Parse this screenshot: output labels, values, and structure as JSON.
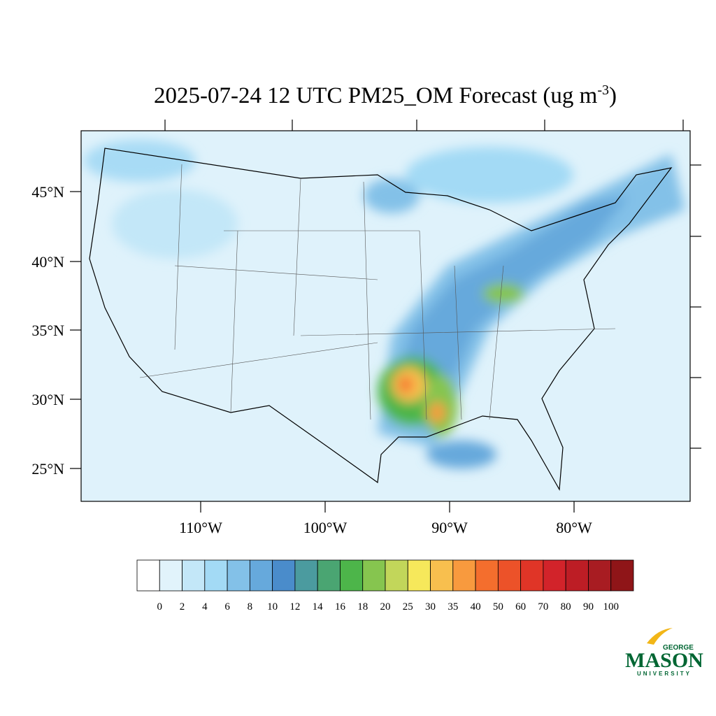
{
  "title": {
    "main": "2025-07-24 12 UTC PM25_OM Forecast (ug m",
    "sup": "-3",
    "end": ")"
  },
  "lat_labels": [
    "45°N",
    "40°N",
    "35°N",
    "30°N",
    "25°N"
  ],
  "lon_labels": [
    "110°W",
    "100°W",
    "90°W",
    "80°W"
  ],
  "colorbar": {
    "labels": [
      "0",
      "2",
      "4",
      "6",
      "8",
      "10",
      "12",
      "14",
      "16",
      "18",
      "20",
      "25",
      "30",
      "35",
      "40",
      "50",
      "60",
      "70",
      "80",
      "90",
      "100"
    ],
    "colors": [
      "#ffffff",
      "#e1f3fb",
      "#c3e7f8",
      "#a3daf5",
      "#83c1e8",
      "#66a9dc",
      "#4a8ccb",
      "#4b9b9f",
      "#4aa572",
      "#4db54a",
      "#86c54f",
      "#c2d65a",
      "#f6e85b",
      "#f8bf4e",
      "#f89a3e",
      "#f46e2d",
      "#ec5229",
      "#e03527",
      "#d2232a",
      "#bd1d25",
      "#a81c22",
      "#8f1518"
    ]
  },
  "logo": {
    "top": "GEORGE",
    "main": "MASON",
    "bottom": "UNIVERSITY"
  }
}
